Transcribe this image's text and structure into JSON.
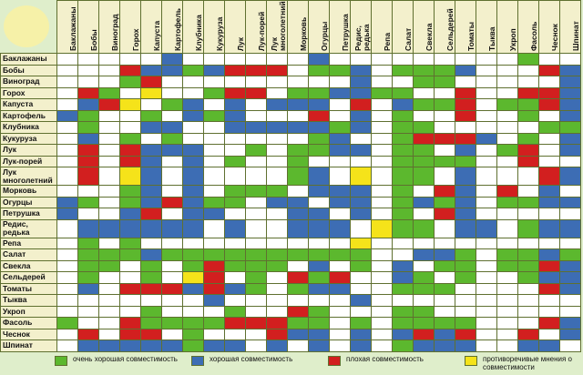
{
  "table": {
    "columns": [
      "Баклажаны",
      "Бобы",
      "Виноград",
      "Горох",
      "Капуста",
      "Картофель",
      "Клубника",
      "Кукуруза",
      "Лук",
      "Лук-порей",
      "Лук многолетний",
      "Морковь",
      "Огурцы",
      "Петрушка",
      "Редис, редька",
      "Репа",
      "Салат",
      "Свекла",
      "Сельдерей",
      "Томаты",
      "Тыква",
      "Укроп",
      "Фасоль",
      "Чеснок",
      "Шпинат"
    ],
    "rows": [
      "Баклажаны",
      "Бобы",
      "Виноград",
      "Горох",
      "Капуста",
      "Картофель",
      "Клубника",
      "Кукуруза",
      "Лук",
      "Лук-порей",
      "Лук многолетний",
      "Морковь",
      "Огурцы",
      "Петрушка",
      "Редис, редька",
      "Репа",
      "Салат",
      "Свекла",
      "Сельдерей",
      "Томаты",
      "Тыква",
      "Укроп",
      "Фасоль",
      "Чеснок",
      "Шпинат"
    ],
    "cells": [
      [
        null,
        null,
        null,
        null,
        null,
        1,
        null,
        null,
        null,
        null,
        null,
        null,
        1,
        null,
        null,
        null,
        null,
        null,
        null,
        null,
        null,
        null,
        0,
        null,
        null
      ],
      [
        null,
        null,
        null,
        2,
        1,
        1,
        0,
        1,
        2,
        2,
        2,
        null,
        0,
        0,
        1,
        null,
        0,
        0,
        0,
        1,
        null,
        null,
        null,
        2,
        1
      ],
      [
        null,
        null,
        null,
        0,
        2,
        null,
        null,
        null,
        null,
        null,
        null,
        null,
        null,
        null,
        1,
        null,
        null,
        0,
        0,
        null,
        null,
        null,
        null,
        null,
        1
      ],
      [
        null,
        2,
        0,
        null,
        3,
        null,
        null,
        0,
        2,
        2,
        null,
        0,
        0,
        1,
        1,
        0,
        0,
        null,
        null,
        2,
        null,
        null,
        2,
        2,
        1
      ],
      [
        null,
        1,
        2,
        3,
        null,
        0,
        1,
        null,
        1,
        null,
        1,
        1,
        1,
        null,
        2,
        null,
        1,
        0,
        0,
        2,
        null,
        0,
        0,
        2,
        1
      ],
      [
        1,
        0,
        null,
        null,
        0,
        null,
        1,
        0,
        1,
        null,
        null,
        null,
        2,
        null,
        1,
        null,
        0,
        null,
        null,
        2,
        null,
        null,
        0,
        null,
        1
      ],
      [
        null,
        0,
        null,
        null,
        1,
        1,
        null,
        null,
        1,
        1,
        1,
        1,
        1,
        0,
        1,
        null,
        0,
        0,
        null,
        null,
        null,
        null,
        null,
        0,
        0
      ],
      [
        null,
        1,
        null,
        0,
        null,
        0,
        null,
        null,
        null,
        null,
        null,
        null,
        0,
        1,
        null,
        null,
        0,
        2,
        2,
        2,
        1,
        null,
        0,
        null,
        1
      ],
      [
        null,
        2,
        null,
        2,
        1,
        1,
        1,
        null,
        null,
        0,
        null,
        0,
        0,
        1,
        1,
        null,
        0,
        0,
        null,
        1,
        null,
        0,
        2,
        null,
        1
      ],
      [
        null,
        2,
        null,
        2,
        1,
        null,
        1,
        null,
        0,
        null,
        null,
        0,
        null,
        null,
        null,
        null,
        0,
        0,
        0,
        0,
        null,
        null,
        2,
        null,
        null
      ],
      [
        null,
        2,
        null,
        3,
        1,
        null,
        1,
        null,
        null,
        null,
        null,
        0,
        1,
        null,
        3,
        null,
        0,
        0,
        null,
        1,
        null,
        null,
        null,
        2,
        1
      ],
      [
        null,
        null,
        null,
        0,
        1,
        null,
        1,
        null,
        0,
        0,
        0,
        null,
        1,
        1,
        1,
        null,
        0,
        null,
        2,
        1,
        null,
        2,
        null,
        1,
        null
      ],
      [
        1,
        0,
        null,
        0,
        1,
        2,
        1,
        0,
        0,
        null,
        1,
        1,
        null,
        1,
        1,
        null,
        0,
        1,
        0,
        1,
        null,
        0,
        0,
        1,
        1
      ],
      [
        1,
        null,
        null,
        1,
        2,
        null,
        1,
        1,
        null,
        null,
        null,
        1,
        1,
        null,
        1,
        null,
        0,
        null,
        2,
        1,
        null,
        null,
        null,
        null,
        null
      ],
      [
        null,
        1,
        1,
        1,
        1,
        1,
        1,
        null,
        1,
        null,
        null,
        1,
        1,
        1,
        null,
        3,
        0,
        0,
        null,
        1,
        1,
        null,
        0,
        1,
        1
      ],
      [
        null,
        0,
        null,
        0,
        null,
        null,
        null,
        null,
        null,
        null,
        null,
        null,
        null,
        null,
        3,
        null,
        null,
        null,
        null,
        null,
        null,
        null,
        null,
        null,
        null
      ],
      [
        null,
        0,
        0,
        0,
        1,
        0,
        0,
        0,
        0,
        0,
        0,
        0,
        0,
        0,
        0,
        null,
        null,
        1,
        1,
        0,
        null,
        0,
        0,
        1,
        0
      ],
      [
        null,
        0,
        0,
        null,
        0,
        null,
        0,
        2,
        0,
        0,
        0,
        null,
        1,
        null,
        0,
        null,
        1,
        null,
        0,
        0,
        null,
        0,
        0,
        2,
        1
      ],
      [
        null,
        0,
        null,
        null,
        0,
        null,
        3,
        2,
        null,
        0,
        null,
        2,
        0,
        2,
        null,
        null,
        1,
        0,
        null,
        0,
        null,
        null,
        0,
        1,
        1
      ],
      [
        null,
        1,
        null,
        2,
        2,
        2,
        1,
        2,
        1,
        0,
        null,
        0,
        1,
        1,
        null,
        null,
        0,
        0,
        0,
        null,
        null,
        null,
        null,
        2,
        1
      ],
      [
        null,
        null,
        null,
        null,
        null,
        null,
        null,
        1,
        null,
        null,
        null,
        null,
        null,
        null,
        1,
        null,
        null,
        null,
        null,
        null,
        null,
        null,
        null,
        null,
        null
      ],
      [
        null,
        null,
        null,
        null,
        0,
        null,
        null,
        null,
        0,
        null,
        null,
        2,
        0,
        null,
        null,
        null,
        0,
        0,
        null,
        null,
        null,
        null,
        null,
        null,
        null
      ],
      [
        0,
        null,
        null,
        2,
        0,
        0,
        0,
        0,
        2,
        2,
        2,
        0,
        0,
        null,
        0,
        null,
        0,
        0,
        0,
        0,
        null,
        null,
        null,
        2,
        1
      ],
      [
        null,
        2,
        null,
        2,
        2,
        null,
        0,
        null,
        null,
        null,
        2,
        1,
        1,
        null,
        1,
        null,
        1,
        2,
        1,
        2,
        null,
        null,
        2,
        null,
        1
      ],
      [
        null,
        1,
        1,
        1,
        1,
        1,
        0,
        1,
        1,
        null,
        1,
        null,
        1,
        null,
        1,
        null,
        0,
        1,
        1,
        1,
        null,
        null,
        1,
        1,
        null
      ]
    ]
  },
  "legend": [
    {
      "label": "очень хорошая совместимость",
      "color": "#5cb82e"
    },
    {
      "label": "хорошая совместимость",
      "color": "#3d6db4"
    },
    {
      "label": "плохая совместимость",
      "color": "#d21f1f"
    },
    {
      "label": "противоречивые мнения о совместимости",
      "color": "#f5e31a"
    }
  ]
}
